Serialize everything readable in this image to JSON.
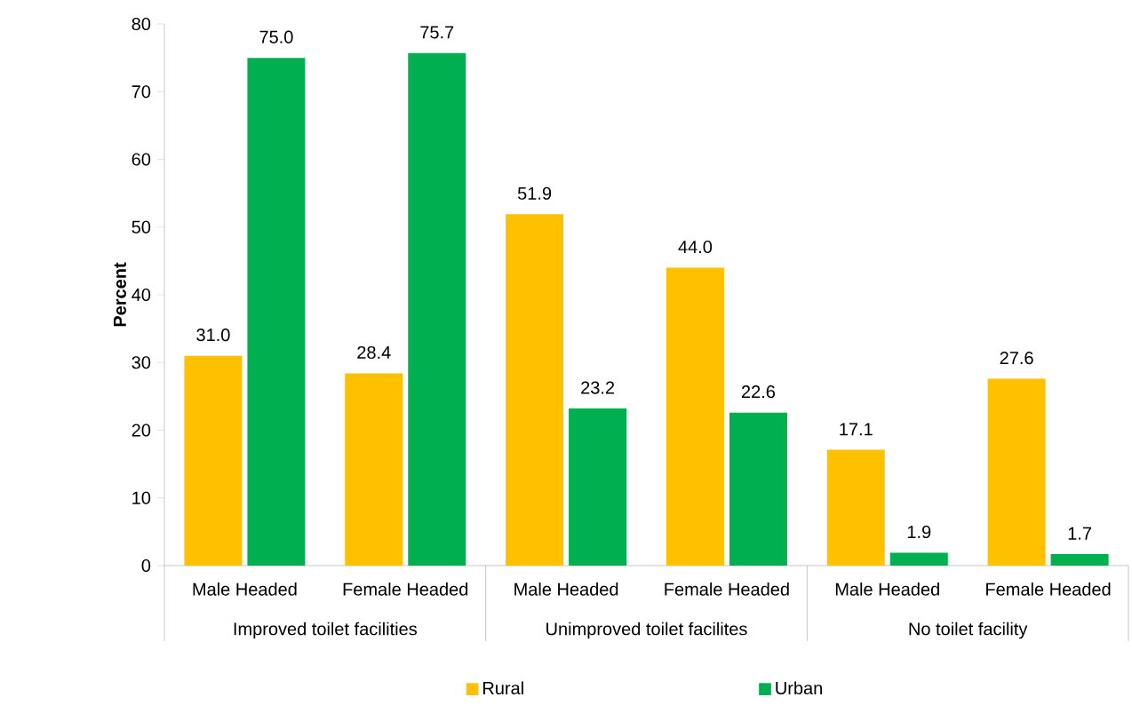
{
  "chart_data": {
    "type": "bar",
    "categories": [
      "Male Headed",
      "Female Headed",
      "Male Headed",
      "Female Headed",
      "Male Headed",
      "Female Headed"
    ],
    "series": [
      {
        "name": "Rural",
        "color": "#ffc000",
        "values": [
          31.0,
          28.4,
          51.9,
          44.0,
          17.1,
          27.6
        ],
        "value_labels": [
          "31.0",
          "28.4",
          "51.9",
          "44.0",
          "17.1",
          "27.6"
        ]
      },
      {
        "name": "Urban",
        "color": "#00b050",
        "values": [
          75.0,
          75.7,
          23.2,
          22.6,
          1.9,
          1.7
        ],
        "value_labels": [
          "75.0",
          "75.7",
          "23.2",
          "22.6",
          "1.9",
          "1.7"
        ]
      }
    ],
    "ylabel": "Percent",
    "ylim": [
      0,
      80
    ],
    "yticks": [
      0,
      10,
      20,
      30,
      40,
      50,
      60,
      70,
      80
    ],
    "legend": "bottom",
    "annotations": [
      "Improved toilet facilities",
      "Unimproved toilet facilites",
      "No toilet facility"
    ]
  }
}
